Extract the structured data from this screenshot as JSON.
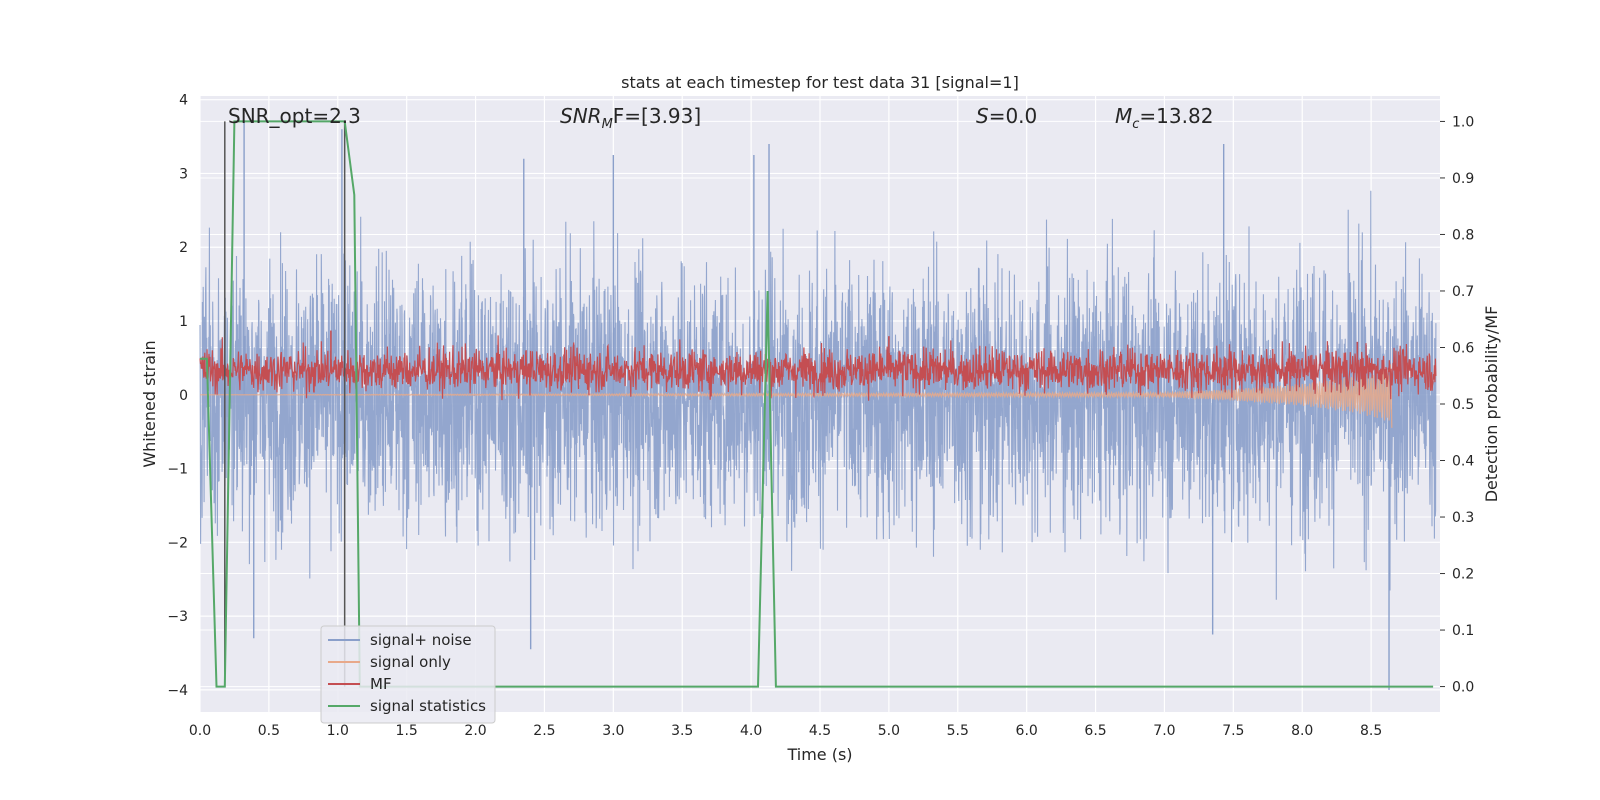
{
  "chart_data": {
    "type": "line",
    "title": "stats at each timestep for test data 31 [signal=1]",
    "xlabel": "Time (s)",
    "ylabel_left": "Whitened strain",
    "ylabel_right": "Detection probability/MF",
    "xlim": [
      0.0,
      9.0
    ],
    "ylim_left": [
      -4.3,
      4.05
    ],
    "ylim_right": [
      -0.045,
      1.045
    ],
    "xticks": [
      "0.0",
      "0.5",
      "1.0",
      "1.5",
      "2.0",
      "2.5",
      "3.0",
      "3.5",
      "4.0",
      "4.5",
      "5.0",
      "5.5",
      "6.0",
      "6.5",
      "7.0",
      "7.5",
      "8.0",
      "8.5"
    ],
    "yticks_left": [
      "4",
      "3",
      "2",
      "1",
      "0",
      "−1",
      "−2",
      "−3",
      "−4"
    ],
    "yticks_right": [
      "1.0",
      "0.9",
      "0.8",
      "0.7",
      "0.6",
      "0.5",
      "0.4",
      "0.3",
      "0.2",
      "0.1",
      "0.0"
    ],
    "grid": true,
    "legend_position": "lower-left",
    "annotations": {
      "snr_opt": "SNR_opt=2.3",
      "snr_mf_base": "SNR",
      "snr_mf_sub": "M",
      "snr_mf_rest": "F=[3.93]",
      "s_var": "S",
      "s_rest": "=0.0",
      "mc_base": "M",
      "mc_sub": "c",
      "mc_rest": "=13.82"
    },
    "series": [
      {
        "name": "signal+ noise",
        "axis": "left",
        "color": "#8a9fca",
        "style": "dense noise trace",
        "typical_range": [
          -2.0,
          2.0
        ],
        "peaks": [
          {
            "x": 0.32,
            "y": 3.7
          },
          {
            "x": 1.03,
            "y": 3.6
          },
          {
            "x": 2.35,
            "y": 3.2
          },
          {
            "x": 3.0,
            "y": 3.25
          },
          {
            "x": 4.02,
            "y": 3.25
          },
          {
            "x": 4.13,
            "y": 3.4
          },
          {
            "x": 7.43,
            "y": 3.4
          },
          {
            "x": 0.39,
            "y": -3.3
          },
          {
            "x": 2.4,
            "y": -3.45
          },
          {
            "x": 7.35,
            "y": -3.25
          },
          {
            "x": 8.63,
            "y": -4.0
          }
        ]
      },
      {
        "name": "signal only",
        "axis": "left",
        "color": "#e8a98a",
        "style": "small chirp growing before merger",
        "points": [
          {
            "x": 0.0,
            "y": 0.0
          },
          {
            "x": 7.0,
            "y": 0.03
          },
          {
            "x": 7.5,
            "y": 0.08
          },
          {
            "x": 8.0,
            "y": 0.15
          },
          {
            "x": 8.4,
            "y": 0.25
          },
          {
            "x": 8.6,
            "y": 0.35
          },
          {
            "x": 8.65,
            "y": 0.45
          }
        ]
      },
      {
        "name": "MF",
        "axis": "right",
        "color": "#c44e52",
        "style": "noisy band",
        "typical_range": [
          0.53,
          0.59
        ],
        "peaks": [
          {
            "x": 0.95,
            "y": 0.63
          },
          {
            "x": 5.0,
            "y": 0.62
          },
          {
            "x": 8.4,
            "y": 0.61
          }
        ]
      },
      {
        "name": "signal statistics",
        "axis": "right",
        "color": "#55a868",
        "points": [
          {
            "x": 0.0,
            "y": 0.58
          },
          {
            "x": 0.05,
            "y": 0.58
          },
          {
            "x": 0.12,
            "y": 0.0
          },
          {
            "x": 0.18,
            "y": 0.0
          },
          {
            "x": 0.25,
            "y": 1.0
          },
          {
            "x": 1.05,
            "y": 1.0
          },
          {
            "x": 1.12,
            "y": 0.87
          },
          {
            "x": 1.16,
            "y": 0.0
          },
          {
            "x": 4.05,
            "y": 0.0
          },
          {
            "x": 4.12,
            "y": 0.7
          },
          {
            "x": 4.18,
            "y": 0.0
          },
          {
            "x": 8.95,
            "y": 0.0
          }
        ]
      }
    ],
    "vertical_markers": [
      {
        "x": 0.18,
        "color": "#555555"
      },
      {
        "x": 1.05,
        "color": "#555555"
      }
    ]
  },
  "legend": {
    "signal_noise": "signal+ noise",
    "signal_only": "signal only",
    "mf": "MF",
    "signal_statistics": "signal statistics"
  }
}
